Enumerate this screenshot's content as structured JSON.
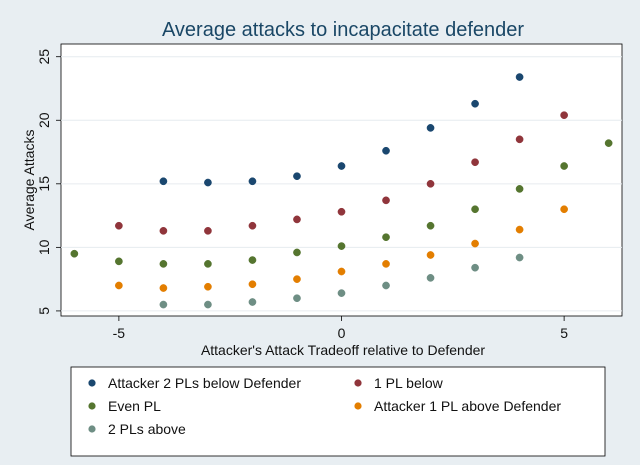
{
  "chart_data": {
    "type": "scatter",
    "title": "Average attacks to incapacitate defender",
    "xlabel": "Attacker's Attack Tradeoff relative to Defender",
    "ylabel": "Average Attacks",
    "xlim": [
      -6.3,
      6.3
    ],
    "ylim": [
      4.6,
      26
    ],
    "x_ticks": [
      -5,
      0,
      5
    ],
    "y_ticks": [
      5,
      10,
      15,
      20,
      25
    ],
    "grid": "horizontal",
    "legend_position": "bottom",
    "series": [
      {
        "name": "Attacker 2 PLs below Defender",
        "color": "#1a476f",
        "points": [
          [
            -4,
            15.2
          ],
          [
            -3,
            15.1
          ],
          [
            -2,
            15.2
          ],
          [
            -1,
            15.6
          ],
          [
            0,
            16.4
          ],
          [
            1,
            17.6
          ],
          [
            2,
            19.4
          ],
          [
            3,
            21.3
          ],
          [
            4,
            23.4
          ]
        ]
      },
      {
        "name": "1 PL below",
        "color": "#90353b",
        "points": [
          [
            -5,
            11.7
          ],
          [
            -4,
            11.3
          ],
          [
            -3,
            11.3
          ],
          [
            -2,
            11.7
          ],
          [
            -1,
            12.2
          ],
          [
            0,
            12.8
          ],
          [
            1,
            13.7
          ],
          [
            2,
            15.0
          ],
          [
            3,
            16.7
          ],
          [
            4,
            18.5
          ],
          [
            5,
            20.4
          ]
        ]
      },
      {
        "name": "Even PL",
        "color": "#55752f",
        "points": [
          [
            -6,
            9.5
          ],
          [
            -5,
            8.9
          ],
          [
            -4,
            8.7
          ],
          [
            -3,
            8.7
          ],
          [
            -2,
            9.0
          ],
          [
            -1,
            9.6
          ],
          [
            0,
            10.1
          ],
          [
            1,
            10.8
          ],
          [
            2,
            11.7
          ],
          [
            3,
            13.0
          ],
          [
            4,
            14.6
          ],
          [
            5,
            16.4
          ],
          [
            6,
            18.2
          ]
        ]
      },
      {
        "name": "Attacker 1 PL above Defender",
        "color": "#e37e00",
        "points": [
          [
            -5,
            7.0
          ],
          [
            -4,
            6.8
          ],
          [
            -3,
            6.9
          ],
          [
            -2,
            7.1
          ],
          [
            -1,
            7.5
          ],
          [
            0,
            8.1
          ],
          [
            1,
            8.7
          ],
          [
            2,
            9.4
          ],
          [
            3,
            10.3
          ],
          [
            4,
            11.4
          ],
          [
            5,
            13.0
          ]
        ]
      },
      {
        "name": "2 PLs above",
        "color": "#6e8e84",
        "points": [
          [
            -4,
            5.5
          ],
          [
            -3,
            5.5
          ],
          [
            -2,
            5.7
          ],
          [
            -1,
            6.0
          ],
          [
            0,
            6.4
          ],
          [
            1,
            7.0
          ],
          [
            2,
            7.6
          ],
          [
            3,
            8.4
          ],
          [
            4,
            9.2
          ]
        ]
      }
    ]
  }
}
